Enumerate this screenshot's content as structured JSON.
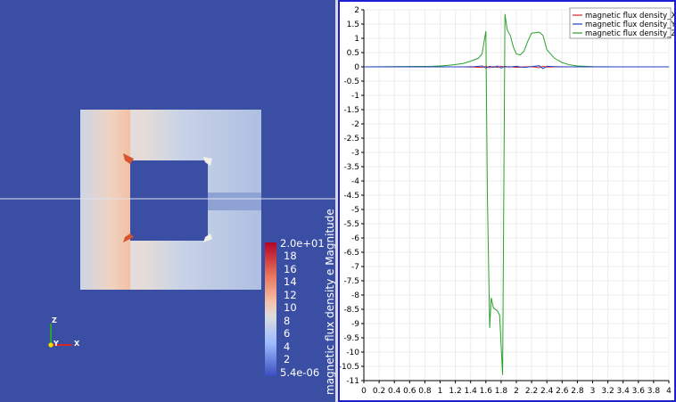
{
  "render_view": {
    "background_color": "#3a4fa3",
    "colorbar": {
      "title": "magnetic flux density e Magnitude",
      "tick_labels": [
        "2.0e+01",
        "18",
        "16",
        "14",
        "12",
        "10",
        "8",
        "6",
        "4",
        "2",
        "5.4e-06"
      ],
      "colors": [
        "#b40426",
        "#e8765c",
        "#f5c4ac",
        "#dddcdc",
        "#9dbdff",
        "#3b4cc0"
      ]
    },
    "orientation_axes": {
      "labels": [
        "Z",
        "Y",
        "X"
      ],
      "colors": [
        "#2ca02c",
        "#f0e000",
        "#d62728"
      ]
    }
  },
  "chart_view": {
    "border_color": "#1e1ed2"
  },
  "chart_data": {
    "type": "line",
    "title": "",
    "xlabel": "",
    "ylabel": "",
    "xlim": [
      0,
      4
    ],
    "ylim": [
      -11,
      2
    ],
    "x_tick_labels": [
      "0",
      "0.2",
      "0.4",
      "0.6",
      "0.8",
      "1",
      "1.2",
      "1.4",
      "1.6",
      "1.8",
      "2",
      "2.2",
      "2.4",
      "2.6",
      "2.8",
      "3",
      "3.2",
      "3.4",
      "3.6",
      "3.8",
      "4"
    ],
    "y_tick_labels": [
      "2",
      "1.5",
      "1",
      "0.5",
      "0",
      "-0.5",
      "-1",
      "-1.5",
      "-2",
      "-2.5",
      "-3",
      "-3.5",
      "-4",
      "-4.5",
      "-5",
      "-5.5",
      "-6",
      "-6.5",
      "-7",
      "-7.5",
      "-8",
      "-8.5",
      "-9",
      "-9.5",
      "-10",
      "-10.5",
      "-11"
    ],
    "grid": true,
    "legend_position": "top-right",
    "series": [
      {
        "name": "magnetic flux density_X",
        "color": "#d62728",
        "x": [
          0,
          1.0,
          1.3,
          1.45,
          1.55,
          1.6,
          1.65,
          1.7,
          1.75,
          1.8,
          1.85,
          1.9,
          2.0,
          2.1,
          2.2,
          2.3,
          2.35,
          2.4,
          2.5,
          2.7,
          3.0,
          4.0
        ],
        "y": [
          0,
          0,
          0,
          -0.01,
          -0.02,
          0.02,
          -0.03,
          0.01,
          -0.02,
          0.02,
          -0.01,
          0.01,
          -0.02,
          0,
          0.01,
          -0.03,
          0.02,
          -0.01,
          0,
          0,
          0,
          0
        ]
      },
      {
        "name": "magnetic flux density_Y",
        "color": "#1f3fbf",
        "x": [
          0,
          1.0,
          1.3,
          1.45,
          1.55,
          1.6,
          1.65,
          1.7,
          1.75,
          1.8,
          1.85,
          1.9,
          2.0,
          2.1,
          2.2,
          2.3,
          2.35,
          2.4,
          2.5,
          2.7,
          3.0,
          4.0
        ],
        "y": [
          0,
          0,
          0,
          0.01,
          0.03,
          -0.04,
          0.02,
          -0.02,
          0.03,
          -0.04,
          0.02,
          -0.01,
          0.02,
          -0.02,
          0.01,
          0.04,
          -0.06,
          0.02,
          0.01,
          0,
          0,
          0
        ]
      },
      {
        "name": "magnetic flux density_Z",
        "color": "#2ca02c",
        "x": [
          0,
          0.9,
          1.0,
          1.1,
          1.2,
          1.3,
          1.4,
          1.5,
          1.55,
          1.6,
          1.62,
          1.65,
          1.67,
          1.7,
          1.75,
          1.78,
          1.82,
          1.85,
          1.88,
          1.92,
          1.96,
          2.0,
          2.05,
          2.1,
          2.15,
          2.2,
          2.3,
          2.35,
          2.4,
          2.5,
          2.6,
          2.7,
          2.8,
          3.0,
          3.3,
          4.0
        ],
        "y": [
          0,
          0.02,
          0.03,
          0.05,
          0.08,
          0.12,
          0.2,
          0.3,
          0.45,
          1.25,
          -4.5,
          -9.15,
          -8.1,
          -8.45,
          -8.55,
          -8.7,
          -10.8,
          1.85,
          1.3,
          1.1,
          0.7,
          0.45,
          0.42,
          0.55,
          0.9,
          1.18,
          1.22,
          1.1,
          0.6,
          0.3,
          0.15,
          0.07,
          0.03,
          0.01,
          0,
          0
        ]
      }
    ]
  }
}
